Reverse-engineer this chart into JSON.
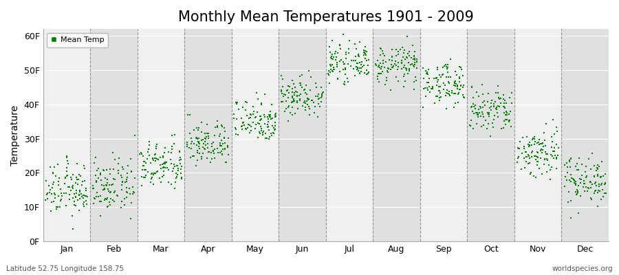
{
  "title": "Monthly Mean Temperatures 1901 - 2009",
  "ylabel": "Temperature",
  "xlabel_months": [
    "Jan",
    "Feb",
    "Mar",
    "Apr",
    "May",
    "Jun",
    "Jul",
    "Aug",
    "Sep",
    "Oct",
    "Nov",
    "Dec"
  ],
  "yticks": [
    0,
    10,
    20,
    30,
    40,
    50,
    60
  ],
  "ytick_labels": [
    "0F",
    "10F",
    "20F",
    "30F",
    "40F",
    "50F",
    "60F"
  ],
  "ylim": [
    0,
    62
  ],
  "dot_color": "#008000",
  "dot_size": 2.5,
  "background_color": "#FFFFFF",
  "plot_bg_color_light": "#F0F0F0",
  "plot_bg_color_dark": "#E0E0E0",
  "legend_label": "Mean Temp",
  "footer_left": "Latitude 52.75 Longitude 158.75",
  "footer_right": "worldspecies.org",
  "title_fontsize": 15,
  "axis_label_fontsize": 10,
  "tick_fontsize": 9,
  "monthly_mean_temps_F": [
    15.0,
    16.0,
    22.0,
    28.5,
    35.5,
    42.5,
    52.0,
    51.5,
    46.0,
    38.0,
    26.0,
    18.0
  ],
  "monthly_std_temps_F": [
    3.8,
    3.8,
    3.5,
    3.2,
    3.2,
    3.0,
    2.5,
    2.8,
    3.0,
    3.5,
    3.8,
    3.5
  ],
  "n_years": 109
}
